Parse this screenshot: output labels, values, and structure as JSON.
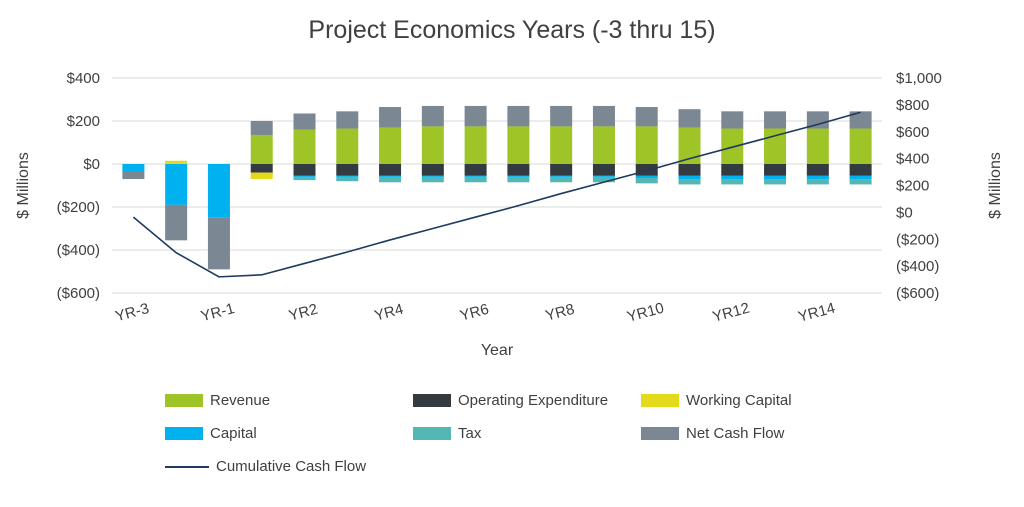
{
  "title": "Project Economics Years (-3 thru 15)",
  "chart_data": {
    "type": "bar",
    "subtype": "stacked-bar-with-line-combo",
    "title": "Project Economics Years (-3 thru 15)",
    "xlabel": "Year",
    "ylabel_left": "$ Millions",
    "ylabel_right": "$ Millions",
    "grid": true,
    "legend_position": "bottom",
    "categories": [
      "YR-3",
      "YR-2",
      "YR-1",
      "YR1",
      "YR2",
      "YR3",
      "YR4",
      "YR5",
      "YR6",
      "YR7",
      "YR8",
      "YR9",
      "YR10",
      "YR11",
      "YR12",
      "YR13",
      "YR14",
      "YR15"
    ],
    "x_tick_labels": [
      "YR-3",
      "",
      "YR-1",
      "",
      "YR2",
      "",
      "YR4",
      "",
      "YR6",
      "",
      "YR8",
      "",
      "YR10",
      "",
      "YR12",
      "",
      "YR14",
      ""
    ],
    "left_axis": {
      "title": "$ Millions",
      "min": -600,
      "max": 400,
      "ticks": [
        {
          "label": "$400",
          "value": 400
        },
        {
          "label": "$200",
          "value": 200
        },
        {
          "label": "$0",
          "value": 0
        },
        {
          "label": "($200)",
          "value": -200
        },
        {
          "label": "($400)",
          "value": -400
        },
        {
          "label": "($600)",
          "value": -600
        }
      ]
    },
    "right_axis": {
      "title": "$ Millions",
      "min": -600,
      "max": 1000,
      "ticks": [
        {
          "label": "$1,000",
          "value": 1000
        },
        {
          "label": "$800",
          "value": 800
        },
        {
          "label": "$600",
          "value": 600
        },
        {
          "label": "$400",
          "value": 400
        },
        {
          "label": "$200",
          "value": 200
        },
        {
          "label": "$0",
          "value": 0
        },
        {
          "label": "($200)",
          "value": -200
        },
        {
          "label": "($400)",
          "value": -400
        },
        {
          "label": "($600)",
          "value": -600
        }
      ]
    },
    "series": [
      {
        "name": "Revenue",
        "color": "#9ec428",
        "values": [
          0,
          0,
          0,
          135,
          160,
          165,
          170,
          175,
          175,
          175,
          175,
          175,
          175,
          170,
          165,
          165,
          165,
          165
        ]
      },
      {
        "name": "Operating Expenditure",
        "color": "#333a40",
        "values": [
          0,
          0,
          0,
          -40,
          -55,
          -55,
          -55,
          -55,
          -55,
          -55,
          -55,
          -55,
          -55,
          -55,
          -55,
          -55,
          -55,
          -55
        ]
      },
      {
        "name": "Working Capital",
        "color": "#e2da1a",
        "values": [
          0,
          15,
          0,
          -30,
          0,
          0,
          0,
          0,
          0,
          0,
          0,
          0,
          0,
          0,
          0,
          0,
          0,
          0
        ]
      },
      {
        "name": "Capital",
        "color": "#00b1f0",
        "values": [
          -35,
          -190,
          -250,
          0,
          -5,
          -5,
          -5,
          -5,
          -5,
          -5,
          -5,
          -5,
          -10,
          -15,
          -15,
          -15,
          -15,
          -15
        ]
      },
      {
        "name": "Tax",
        "color": "#53b7b3",
        "values": [
          0,
          0,
          0,
          0,
          -15,
          -20,
          -25,
          -25,
          -25,
          -25,
          -25,
          -25,
          -25,
          -25,
          -25,
          -25,
          -25,
          -25
        ]
      },
      {
        "name": "Net Cash Flow",
        "color": "#7b8793",
        "values": [
          -35,
          -165,
          -240,
          65,
          75,
          80,
          95,
          95,
          95,
          95,
          95,
          95,
          90,
          85,
          80,
          80,
          80,
          80
        ]
      }
    ],
    "line": {
      "name": "Cumulative Cash Flow",
      "color": "#1e3a5f",
      "axis": "right",
      "values": [
        -35,
        -300,
        -480,
        -465,
        -380,
        -295,
        -205,
        -120,
        -35,
        50,
        140,
        225,
        310,
        400,
        485,
        570,
        655,
        745
      ]
    },
    "colors": {
      "grid": "#d9d9d9",
      "text": "#404040"
    }
  },
  "legend": {
    "items": [
      {
        "label": "Revenue",
        "color": "#9ec428",
        "type": "box"
      },
      {
        "label": "Operating Expenditure",
        "color": "#333a40",
        "type": "box"
      },
      {
        "label": "Working Capital",
        "color": "#e2da1a",
        "type": "box"
      },
      {
        "label": "Capital",
        "color": "#00b1f0",
        "type": "box"
      },
      {
        "label": "Tax",
        "color": "#53b7b3",
        "type": "box"
      },
      {
        "label": "Net Cash Flow",
        "color": "#7b8793",
        "type": "box"
      },
      {
        "label": "Cumulative Cash Flow",
        "color": "#1e3a5f",
        "type": "line"
      }
    ]
  }
}
